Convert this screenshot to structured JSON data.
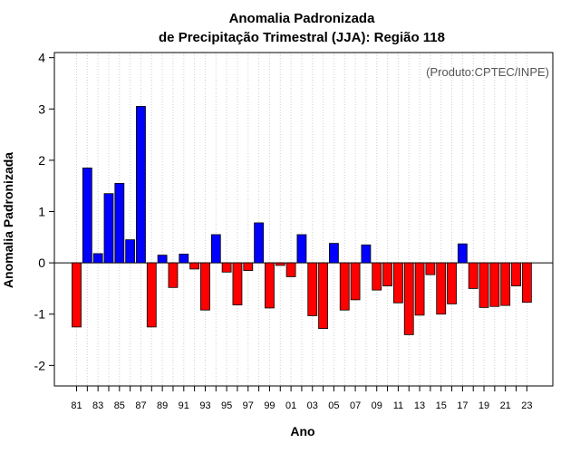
{
  "chart_data": {
    "type": "bar",
    "title_line1": "Anomalia Padronizada",
    "title_line2": "de Precipitação Trimestral (JJA): Região 118",
    "xlabel": "Ano",
    "ylabel": "Anomalia Padronizada",
    "source": "(Produto:CPTEC/INPE)",
    "ylim": [
      -2.4,
      4.1
    ],
    "yticks": [
      -2,
      -1,
      0,
      1,
      2,
      3,
      4
    ],
    "years": [
      "81",
      "82",
      "83",
      "84",
      "85",
      "86",
      "87",
      "88",
      "89",
      "90",
      "91",
      "92",
      "93",
      "94",
      "95",
      "96",
      "97",
      "98",
      "99",
      "00",
      "01",
      "02",
      "03",
      "04",
      "05",
      "06",
      "07",
      "08",
      "09",
      "10",
      "11",
      "12",
      "13",
      "14",
      "15",
      "16",
      "17",
      "18",
      "19",
      "20",
      "21",
      "22",
      "23"
    ],
    "xtick_labels": [
      "81",
      "83",
      "85",
      "87",
      "89",
      "91",
      "93",
      "95",
      "97",
      "99",
      "01",
      "03",
      "05",
      "07",
      "09",
      "11",
      "13",
      "15",
      "17",
      "19",
      "21",
      "23"
    ],
    "values": [
      -1.25,
      1.85,
      0.18,
      1.35,
      1.55,
      0.45,
      3.05,
      -1.25,
      0.15,
      -0.48,
      0.17,
      -0.12,
      -0.92,
      0.55,
      -0.18,
      -0.82,
      -0.15,
      0.78,
      -0.88,
      -0.05,
      -0.27,
      0.55,
      -1.03,
      -1.28,
      0.38,
      -0.92,
      -0.72,
      0.35,
      -0.53,
      -0.45,
      -0.78,
      -1.4,
      -1.02,
      -0.23,
      -1.0,
      -0.8,
      0.37,
      -0.5,
      -0.87,
      -0.85,
      -0.83,
      -0.45,
      -0.77
    ],
    "positive_color": "#0000ff",
    "negative_color": "#ff0000"
  }
}
